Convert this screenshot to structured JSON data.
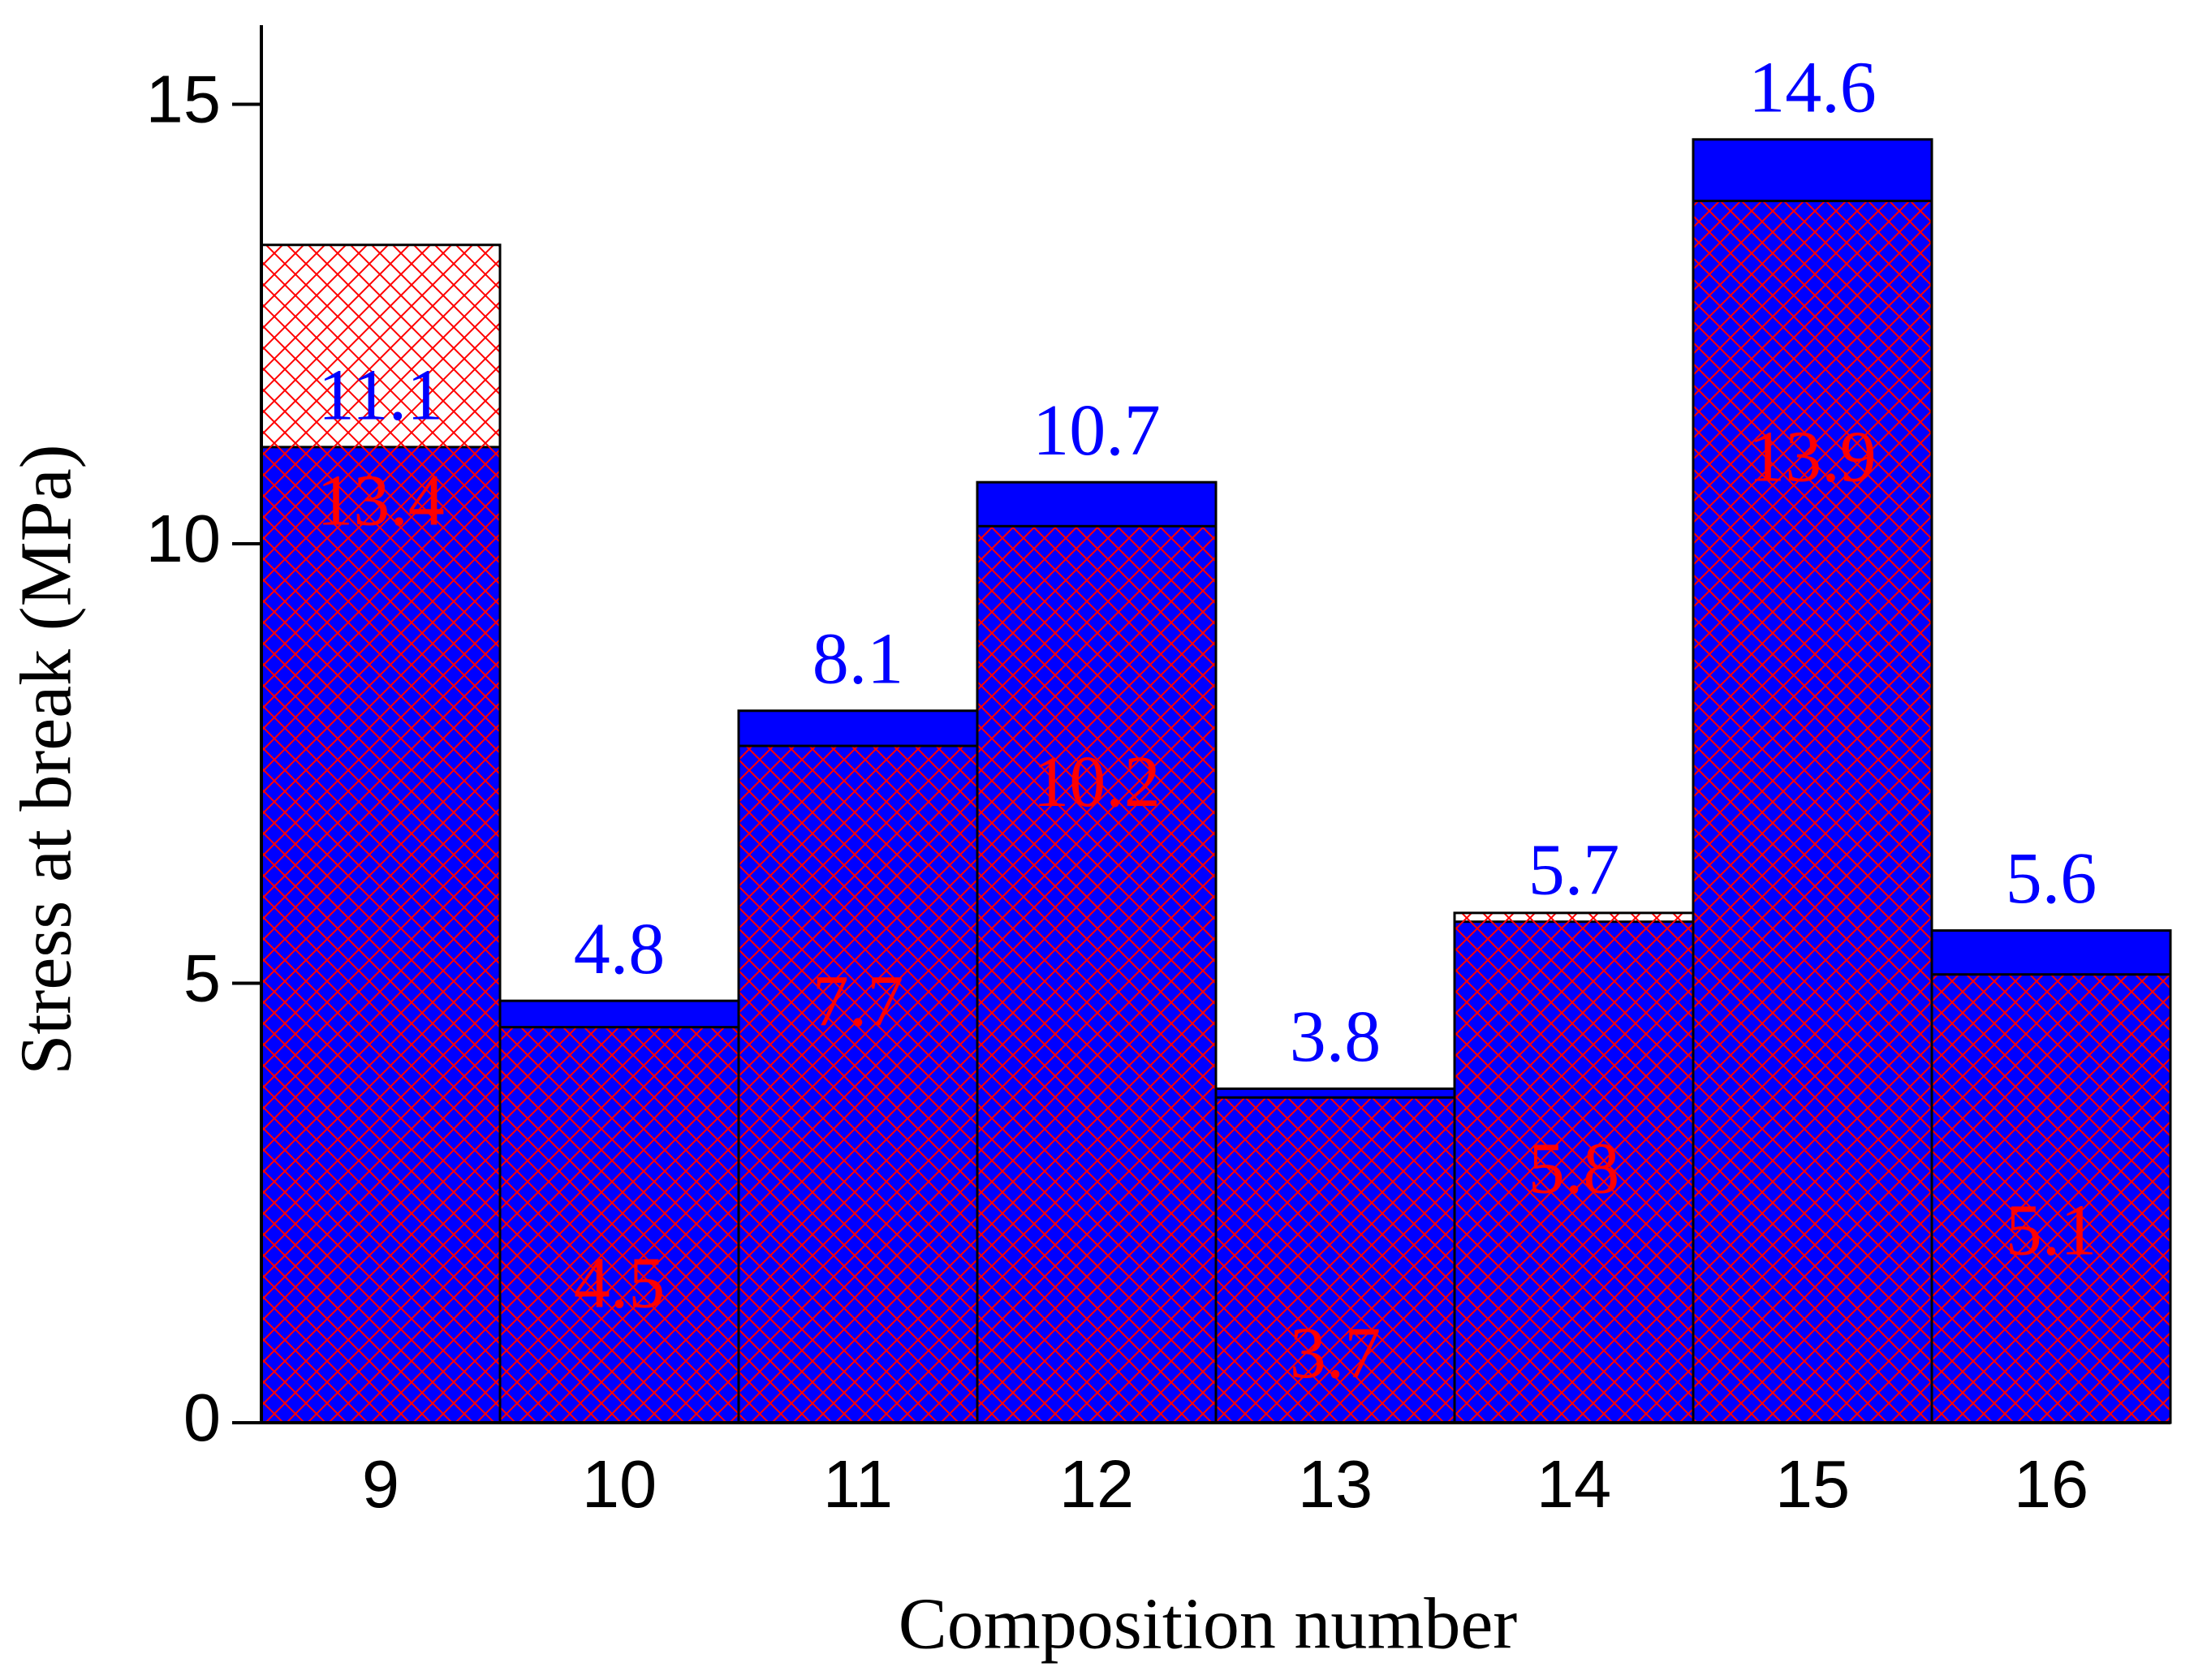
{
  "chart_data": {
    "type": "bar",
    "overlap": true,
    "x_label": "Composition number",
    "y_label": "Stress at break (MPa)",
    "categories": [
      "9",
      "10",
      "11",
      "12",
      "13",
      "14",
      "15",
      "16"
    ],
    "series": [
      {
        "color": "#0000ff",
        "fill": "solid",
        "values": [
          11.1,
          4.8,
          8.1,
          10.7,
          3.8,
          5.7,
          14.6,
          5.6
        ]
      },
      {
        "color": "#ff0000",
        "fill": "crosshatch",
        "values": [
          13.4,
          4.5,
          7.7,
          10.2,
          3.7,
          5.8,
          13.9,
          5.1
        ]
      }
    ],
    "ylim": [
      0,
      15.9
    ],
    "yticks": [
      0,
      5,
      10,
      15
    ]
  }
}
